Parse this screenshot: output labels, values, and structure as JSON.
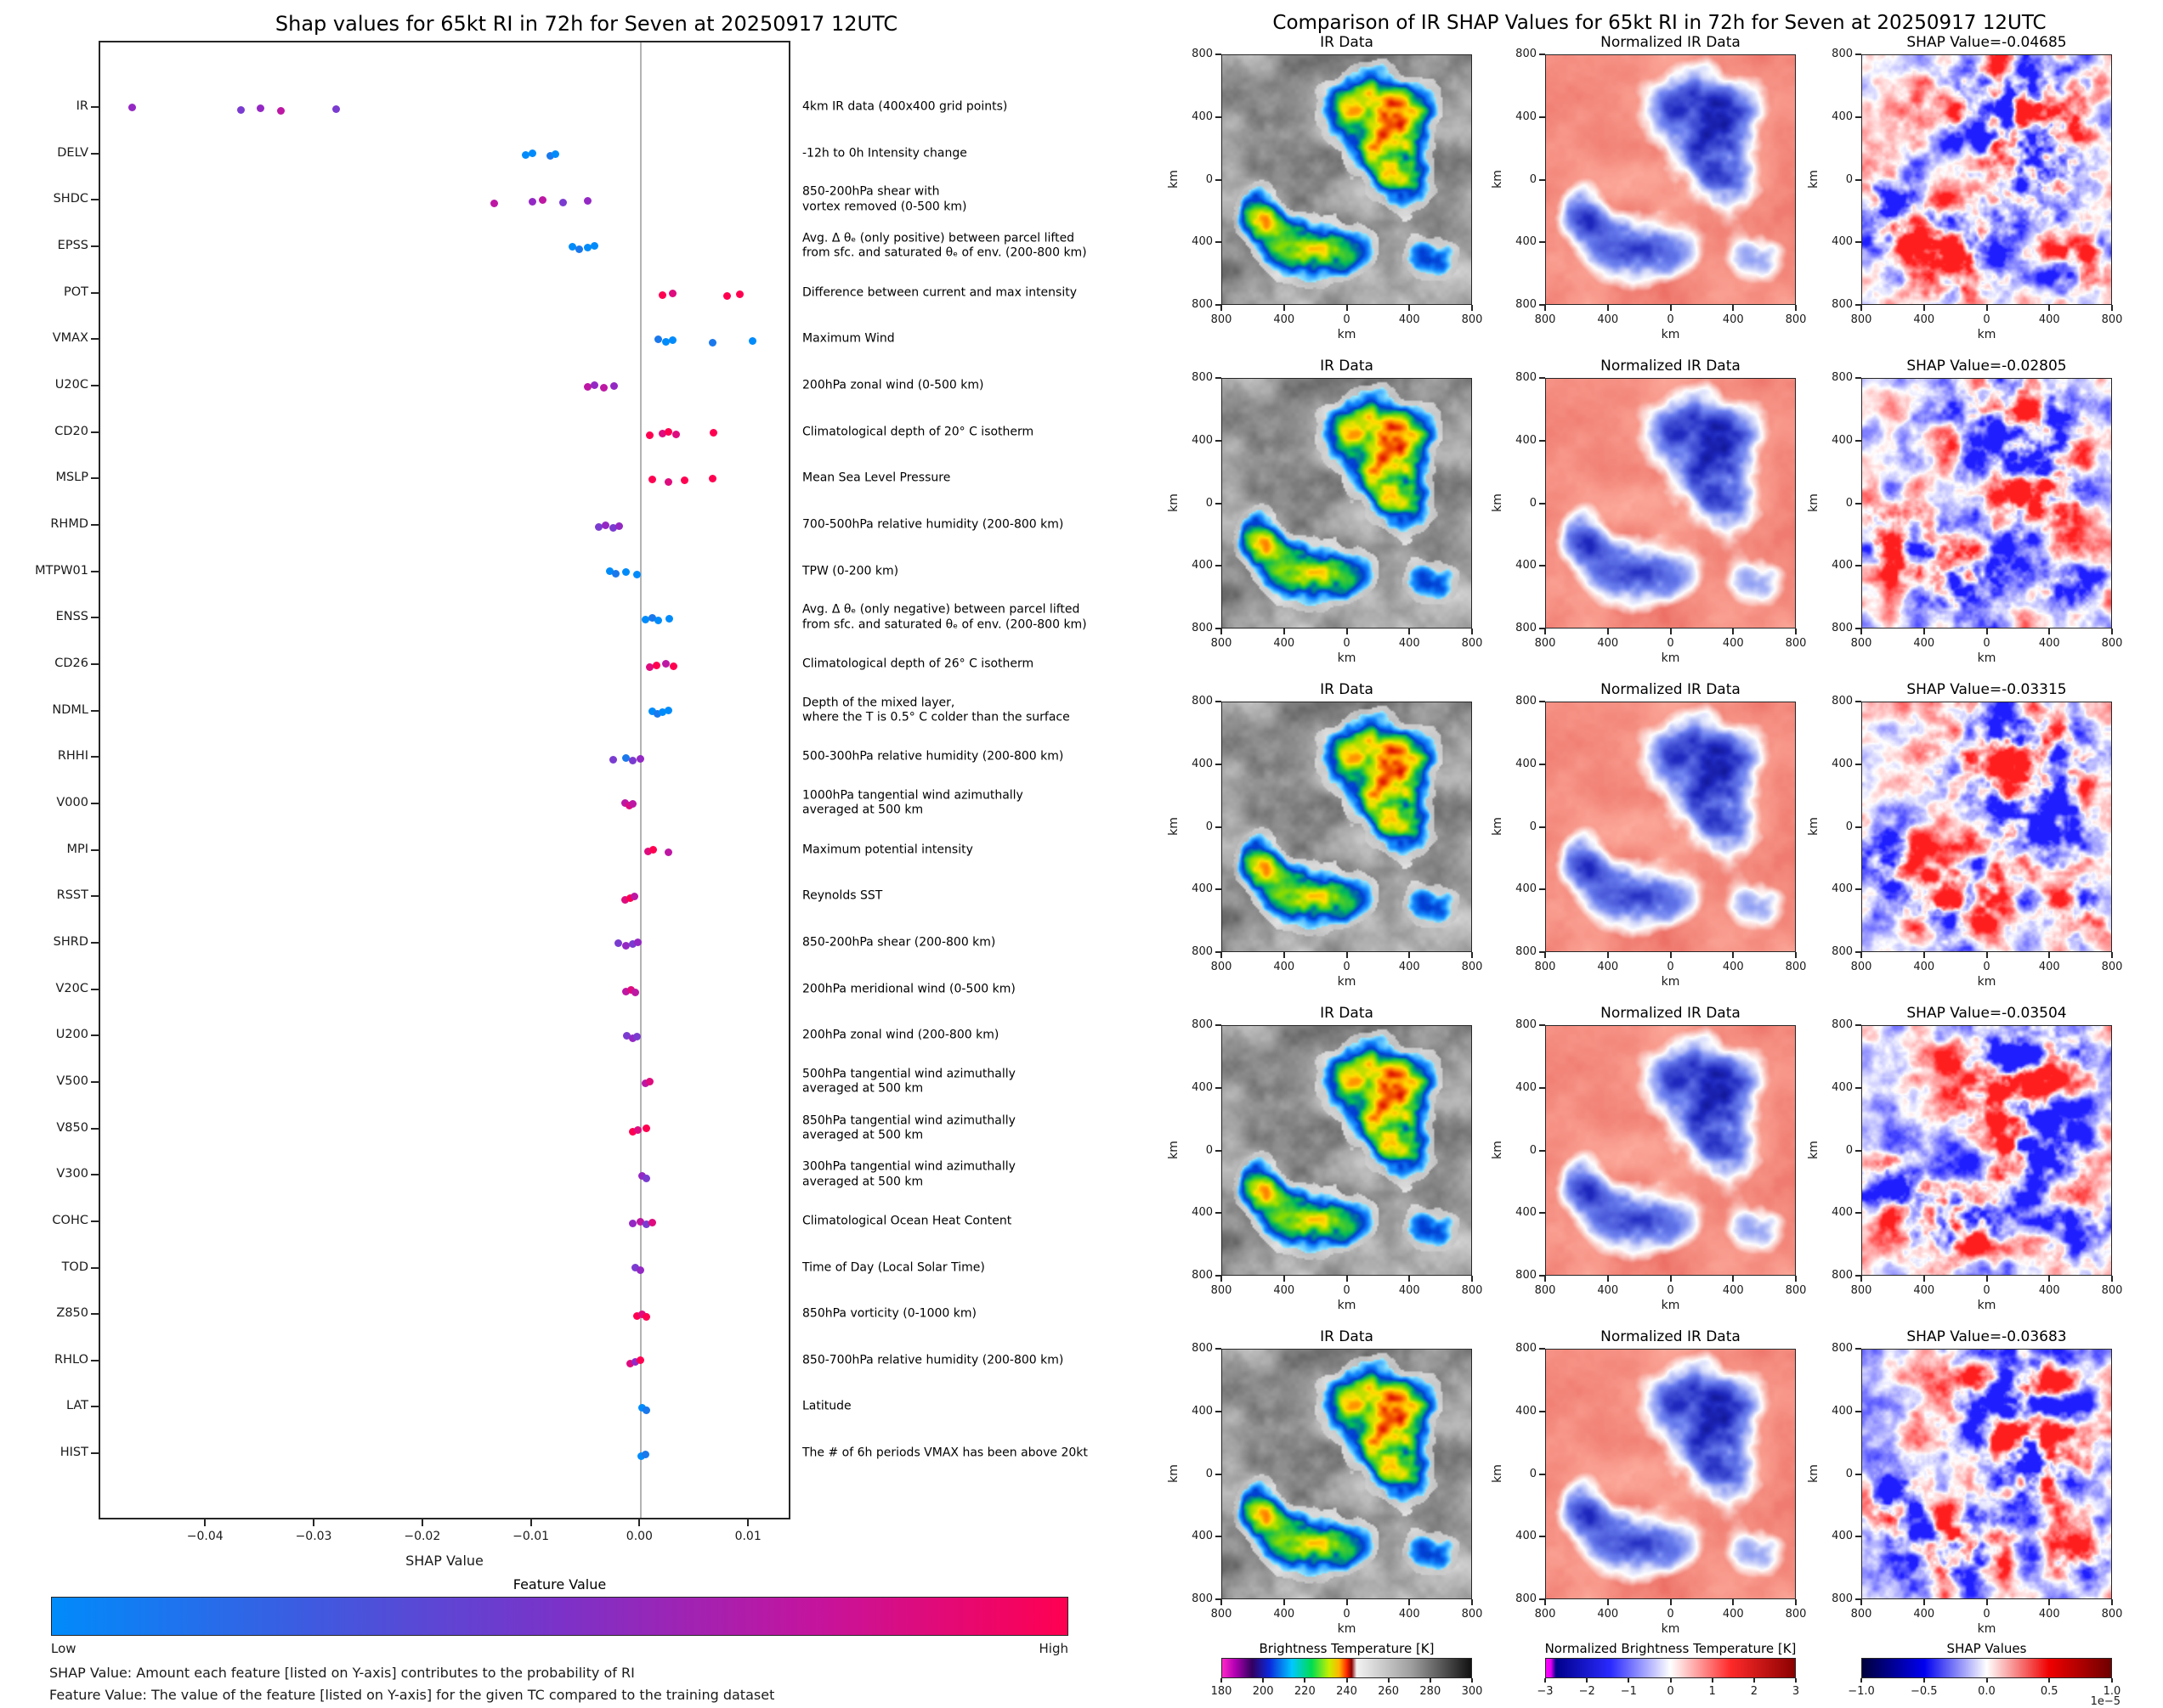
{
  "left_panel": {
    "title": "Shap values for 65kt RI in 72h for Seven at 20250917 12UTC",
    "xlabel": "SHAP Value",
    "colorbar": {
      "title": "Feature Value",
      "low_label": "Low",
      "high_label": "High",
      "gradient": [
        "#008BFB 0%",
        "#3D5BE0 25%",
        "#7B32C8 50%",
        "#C4149E 75%",
        "#FF0051 100%"
      ]
    },
    "footnotes": [
      "SHAP Value: Amount each feature [listed on Y-axis] contributes to the probability of RI",
      "Feature Value: The value of the feature [listed on Y-axis] for the given TC compared to the training dataset"
    ]
  },
  "right_panel": {
    "title": "Comparison of IR SHAP Values for 65kt RI in 72h for Seven at 20250917 12UTC",
    "image_axes": {
      "x_ticks": [
        "800",
        "400",
        "0",
        "400",
        "800"
      ],
      "y_ticks": [
        "800",
        "400",
        "0",
        "400",
        "800"
      ],
      "xlabel": "km",
      "ylabel": "km"
    },
    "rows": [
      {
        "ir_title": "IR Data",
        "norm_title": "Normalized IR Data",
        "shap_title": "SHAP Value=-0.04685",
        "shap_value": -0.04685
      },
      {
        "ir_title": "IR Data",
        "norm_title": "Normalized IR Data",
        "shap_title": "SHAP Value=-0.02805",
        "shap_value": -0.02805
      },
      {
        "ir_title": "IR Data",
        "norm_title": "Normalized IR Data",
        "shap_title": "SHAP Value=-0.03315",
        "shap_value": -0.03315
      },
      {
        "ir_title": "IR Data",
        "norm_title": "Normalized IR Data",
        "shap_title": "SHAP Value=-0.03504",
        "shap_value": -0.03504
      },
      {
        "ir_title": "IR Data",
        "norm_title": "Normalized IR Data",
        "shap_title": "SHAP Value=-0.03683",
        "shap_value": -0.03683
      }
    ],
    "colorbars": [
      {
        "label": "Brightness Temperature [K]",
        "ticks": [
          "180",
          "200",
          "220",
          "240",
          "260",
          "280",
          "300"
        ],
        "gradient": [
          "#FF28C8 0%",
          "#B400B4 5%",
          "#32005F 12%",
          "#0A28DC 19%",
          "#00C8FF 28%",
          "#00DC50 36%",
          "#C8F000 43%",
          "#FFB400 47%",
          "#FF2800 50%",
          "#8C0000 52%",
          "#F2F2F2 54%",
          "#9E9E9E 76%",
          "#111111 100%"
        ]
      },
      {
        "label": "Normalized Brightness Temperature [K]",
        "ticks": [
          "−3",
          "−2",
          "−1",
          "0",
          "1",
          "2",
          "3"
        ],
        "gradient": [
          "#FF00FF 0%",
          "#E100F0 2%",
          "#00008B 4%",
          "#2A2AFF 26%",
          "#FFFFFF 50%",
          "#FF2A2A 74%",
          "#8B0000 100%"
        ]
      },
      {
        "label": "SHAP Values",
        "ticks": [
          "−1.0",
          "−0.5",
          "0.0",
          "0.5",
          "1.0"
        ],
        "offset_label": "1e−5",
        "gradient": [
          "#00003C 0%",
          "#0000F0 25%",
          "#FFFFFF 50%",
          "#F00000 75%",
          "#6E0000 100%"
        ]
      }
    ]
  },
  "chart_data": [
    {
      "type": "scatter",
      "title": "Shap values for 65kt RI in 72h for Seven at 20250917 12UTC",
      "xlabel": "SHAP Value",
      "xlim": [
        -0.0498,
        0.0139
      ],
      "x_tick_values": [
        -0.04,
        -0.03,
        -0.02,
        -0.01,
        0.0,
        0.01
      ],
      "x_tick_labels": [
        "−0.04",
        "−0.03",
        "−0.02",
        "−0.01",
        "0.00",
        "0.01"
      ],
      "features": [
        {
          "name": "IR",
          "description": "4km IR data (400x400 grid points)",
          "dots": [
            {
              "v": -0.04685,
              "c": "#9428C4"
            },
            {
              "v": -0.03683,
              "c": "#7A3BD0"
            },
            {
              "v": -0.03504,
              "c": "#9428C4"
            },
            {
              "v": -0.03315,
              "c": "#BD17A4"
            },
            {
              "v": -0.02805,
              "c": "#7A3BD0"
            }
          ]
        },
        {
          "name": "DELV",
          "description": "-12h to 0h Intensity change",
          "dots": [
            {
              "v": -0.0106,
              "c": "#008BFB"
            },
            {
              "v": -0.01,
              "c": "#008BFB"
            },
            {
              "v": -0.0084,
              "c": "#1A78EC"
            },
            {
              "v": -0.0079,
              "c": "#008BFB"
            }
          ]
        },
        {
          "name": "SHDC",
          "description": "850-200hPa shear with\nvortex removed (0-500 km)",
          "dots": [
            {
              "v": -0.0135,
              "c": "#BD17A4"
            },
            {
              "v": -0.01,
              "c": "#9428C4"
            },
            {
              "v": -0.0091,
              "c": "#BD17A4"
            },
            {
              "v": -0.0072,
              "c": "#7A3BD0"
            },
            {
              "v": -0.0049,
              "c": "#9428C4"
            }
          ]
        },
        {
          "name": "EPSS",
          "description": "Avg. Δ θₑ (only positive) between parcel lifted\nfrom sfc. and saturated θₑ of env. (200-800 km)",
          "dots": [
            {
              "v": -0.0063,
              "c": "#008BFB"
            },
            {
              "v": -0.0057,
              "c": "#1A78EC"
            },
            {
              "v": -0.0049,
              "c": "#008BFB"
            },
            {
              "v": -0.0043,
              "c": "#008BFB"
            }
          ]
        },
        {
          "name": "POT",
          "description": "Difference between current and max intensity",
          "dots": [
            {
              "v": 0.002,
              "c": "#FF0051"
            },
            {
              "v": 0.0029,
              "c": "#DE0C7E"
            },
            {
              "v": 0.0079,
              "c": "#FF0051"
            },
            {
              "v": 0.0091,
              "c": "#FF0051"
            }
          ]
        },
        {
          "name": "VMAX",
          "description": "Maximum Wind",
          "dots": [
            {
              "v": 0.0016,
              "c": "#1A78EC"
            },
            {
              "v": 0.0023,
              "c": "#008BFB"
            },
            {
              "v": 0.0029,
              "c": "#008BFB"
            },
            {
              "v": 0.0066,
              "c": "#1A78EC"
            },
            {
              "v": 0.0103,
              "c": "#008BFB"
            }
          ]
        },
        {
          "name": "U20C",
          "description": "200hPa zonal wind (0-500 km)",
          "dots": [
            {
              "v": -0.0049,
              "c": "#BD17A4"
            },
            {
              "v": -0.0043,
              "c": "#9428C4"
            },
            {
              "v": -0.0034,
              "c": "#BD17A4"
            },
            {
              "v": -0.0025,
              "c": "#9428C4"
            }
          ]
        },
        {
          "name": "CD20",
          "description": "Climatological depth of 20° C isotherm",
          "dots": [
            {
              "v": 0.0008,
              "c": "#FF0051"
            },
            {
              "v": 0.002,
              "c": "#DE0C7E"
            },
            {
              "v": 0.0025,
              "c": "#FF0051"
            },
            {
              "v": 0.0032,
              "c": "#DE0C7E"
            },
            {
              "v": 0.0067,
              "c": "#FF0051"
            }
          ]
        },
        {
          "name": "MSLP",
          "description": "Mean Sea Level Pressure",
          "dots": [
            {
              "v": 0.001,
              "c": "#FF0051"
            },
            {
              "v": 0.0025,
              "c": "#DE0C7E"
            },
            {
              "v": 0.004,
              "c": "#FF0051"
            },
            {
              "v": 0.0066,
              "c": "#FF0051"
            }
          ]
        },
        {
          "name": "RHMD",
          "description": "700-500hPa relative humidity (200-800 km)",
          "dots": [
            {
              "v": -0.0039,
              "c": "#7A3BD0"
            },
            {
              "v": -0.0033,
              "c": "#9428C4"
            },
            {
              "v": -0.0026,
              "c": "#7A3BD0"
            },
            {
              "v": -0.002,
              "c": "#9428C4"
            }
          ]
        },
        {
          "name": "MTPW01",
          "description": "TPW (0-200 km)",
          "dots": [
            {
              "v": -0.0029,
              "c": "#008BFB"
            },
            {
              "v": -0.0023,
              "c": "#1A78EC"
            },
            {
              "v": -0.0014,
              "c": "#008BFB"
            },
            {
              "v": -0.0004,
              "c": "#008BFB"
            }
          ]
        },
        {
          "name": "ENSS",
          "description": "Avg. Δ θₑ (only negative) between parcel lifted\nfrom sfc. and saturated θₑ of env. (200-800 km)",
          "dots": [
            {
              "v": 0.0004,
              "c": "#008BFB"
            },
            {
              "v": 0.001,
              "c": "#1A78EC"
            },
            {
              "v": 0.0016,
              "c": "#008BFB"
            },
            {
              "v": 0.0026,
              "c": "#008BFB"
            }
          ]
        },
        {
          "name": "CD26",
          "description": "Climatological depth of 26° C isotherm",
          "dots": [
            {
              "v": 0.0008,
              "c": "#DE0C7E"
            },
            {
              "v": 0.0014,
              "c": "#FF0051"
            },
            {
              "v": 0.0023,
              "c": "#BD17A4"
            },
            {
              "v": 0.003,
              "c": "#FF0051"
            }
          ]
        },
        {
          "name": "NDML",
          "description": "Depth of the mixed layer,\nwhere the T is 0.5° C colder than the surface",
          "dots": [
            {
              "v": 0.001,
              "c": "#008BFB"
            },
            {
              "v": 0.0015,
              "c": "#1A78EC"
            },
            {
              "v": 0.002,
              "c": "#008BFB"
            },
            {
              "v": 0.0025,
              "c": "#008BFB"
            }
          ]
        },
        {
          "name": "RHHI",
          "description": "500-300hPa relative humidity (200-800 km)",
          "dots": [
            {
              "v": -0.0026,
              "c": "#7A3BD0"
            },
            {
              "v": -0.0014,
              "c": "#1A78EC"
            },
            {
              "v": -0.0008,
              "c": "#7A3BD0"
            },
            {
              "v": -0.0001,
              "c": "#9428C4"
            }
          ]
        },
        {
          "name": "V000",
          "description": "1000hPa tangential wind azimuthally\naveraged at 500 km",
          "dots": [
            {
              "v": -0.0015,
              "c": "#BD17A4"
            },
            {
              "v": -0.0011,
              "c": "#DE0C7E"
            },
            {
              "v": -0.0008,
              "c": "#BD17A4"
            }
          ]
        },
        {
          "name": "MPI",
          "description": "Maximum potential intensity",
          "dots": [
            {
              "v": 0.0006,
              "c": "#DE0C7E"
            },
            {
              "v": 0.0011,
              "c": "#FF0051"
            },
            {
              "v": 0.0025,
              "c": "#BD17A4"
            }
          ]
        },
        {
          "name": "RSST",
          "description": "Reynolds SST",
          "dots": [
            {
              "v": -0.0015,
              "c": "#DE0C7E"
            },
            {
              "v": -0.001,
              "c": "#FF0051"
            },
            {
              "v": -0.0006,
              "c": "#BD17A4"
            }
          ]
        },
        {
          "name": "SHRD",
          "description": "850-200hPa shear (200-800 km)",
          "dots": [
            {
              "v": -0.0021,
              "c": "#7A3BD0"
            },
            {
              "v": -0.0014,
              "c": "#9428C4"
            },
            {
              "v": -0.0008,
              "c": "#7A3BD0"
            },
            {
              "v": -0.0003,
              "c": "#9428C4"
            }
          ]
        },
        {
          "name": "V20C",
          "description": "200hPa meridional wind (0-500 km)",
          "dots": [
            {
              "v": -0.0014,
              "c": "#BD17A4"
            },
            {
              "v": -0.0009,
              "c": "#DE0C7E"
            },
            {
              "v": -0.0005,
              "c": "#BD17A4"
            }
          ]
        },
        {
          "name": "U200",
          "description": "200hPa zonal wind (200-800 km)",
          "dots": [
            {
              "v": -0.0013,
              "c": "#7A3BD0"
            },
            {
              "v": -0.0008,
              "c": "#9428C4"
            },
            {
              "v": -0.0004,
              "c": "#7A3BD0"
            }
          ]
        },
        {
          "name": "V500",
          "description": "500hPa tangential wind azimuthally\naveraged at 500 km",
          "dots": [
            {
              "v": 0.0004,
              "c": "#BD17A4"
            },
            {
              "v": 0.0008,
              "c": "#DE0C7E"
            }
          ]
        },
        {
          "name": "V850",
          "description": "850hPa tangential wind azimuthally\naveraged at 500 km",
          "dots": [
            {
              "v": -0.0008,
              "c": "#FF0051"
            },
            {
              "v": -0.0003,
              "c": "#DE0C7E"
            },
            {
              "v": 0.0005,
              "c": "#FF0051"
            }
          ]
        },
        {
          "name": "V300",
          "description": "300hPa tangential wind azimuthally\naveraged at 500 km",
          "dots": [
            {
              "v": 0.0001,
              "c": "#9428C4"
            },
            {
              "v": 0.0005,
              "c": "#7A3BD0"
            }
          ]
        },
        {
          "name": "COHC",
          "description": "Climatological Ocean Heat Content",
          "dots": [
            {
              "v": -0.0008,
              "c": "#9428C4"
            },
            {
              "v": -0.0001,
              "c": "#BD17A4"
            },
            {
              "v": 0.0005,
              "c": "#7A3BD0"
            },
            {
              "v": 0.001,
              "c": "#DE0C7E"
            }
          ]
        },
        {
          "name": "TOD",
          "description": "Time of Day (Local Solar Time)",
          "dots": [
            {
              "v": -0.0005,
              "c": "#7A3BD0"
            },
            {
              "v": -0.0001,
              "c": "#9428C4"
            }
          ]
        },
        {
          "name": "Z850",
          "description": "850hPa vorticity (0-1000 km)",
          "dots": [
            {
              "v": -0.0004,
              "c": "#FF0051"
            },
            {
              "v": 0.0001,
              "c": "#DE0C7E"
            },
            {
              "v": 0.0005,
              "c": "#FF0051"
            }
          ]
        },
        {
          "name": "RHLO",
          "description": "850-700hPa relative humidity (200-800 km)",
          "dots": [
            {
              "v": -0.001,
              "c": "#DE0C7E"
            },
            {
              "v": -0.0005,
              "c": "#9428C4"
            },
            {
              "v": -0.0001,
              "c": "#FF0051"
            }
          ]
        },
        {
          "name": "LAT",
          "description": "Latitude",
          "dots": [
            {
              "v": 0.0001,
              "c": "#008BFB"
            },
            {
              "v": 0.0005,
              "c": "#1A78EC"
            }
          ]
        },
        {
          "name": "HIST",
          "description": "The # of 6h periods VMAX has been above 20kt",
          "dots": [
            {
              "v": 0.0,
              "c": "#008BFB"
            },
            {
              "v": 0.0004,
              "c": "#1A78EC"
            }
          ]
        }
      ]
    },
    {
      "type": "heatmap",
      "title": "Comparison of IR SHAP Values for 65kt RI in 72h for Seven at 20250917 12UTC",
      "columns": [
        "IR Data",
        "Normalized IR Data",
        "SHAP Values"
      ],
      "rows": [
        {
          "shap_value": -0.04685
        },
        {
          "shap_value": -0.02805
        },
        {
          "shap_value": -0.03315
        },
        {
          "shap_value": -0.03504
        },
        {
          "shap_value": -0.03683
        }
      ],
      "axes_km_ticks": [
        800,
        400,
        0,
        400,
        800
      ],
      "colorbar_ranges": {
        "brightness_temperature_k": [
          180,
          300
        ],
        "normalized_bt": [
          -3,
          3
        ],
        "shap": [
          -1e-05,
          1e-05
        ]
      }
    }
  ]
}
